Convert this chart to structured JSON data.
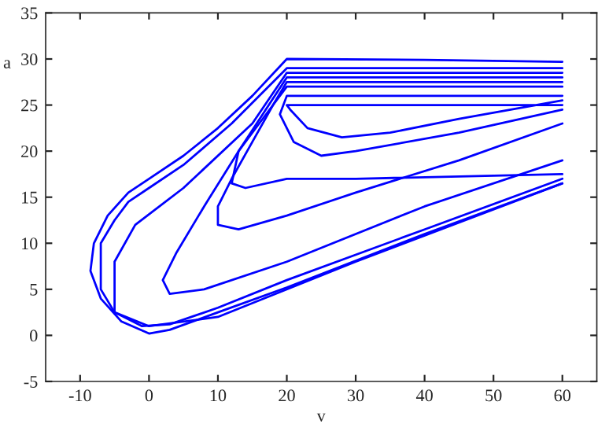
{
  "chart_data": {
    "type": "line",
    "xlabel": "v",
    "ylabel": "a",
    "xlim": [
      -15,
      65
    ],
    "xticks": [
      -10,
      0,
      10,
      20,
      30,
      40,
      50,
      60
    ],
    "ylim": [
      -5,
      35
    ],
    "yticks": [
      -5,
      0,
      5,
      10,
      15,
      20,
      25,
      30,
      35
    ],
    "grid": false,
    "legend": false,
    "marker": "none",
    "line_style": "solid",
    "series": [
      {
        "color": "#0000ff",
        "x": [
          60,
          40,
          20,
          10,
          3,
          0,
          -4,
          -7,
          -8.5,
          -8,
          -6,
          -3,
          0,
          5,
          10,
          15,
          20,
          40,
          60
        ],
        "values": [
          16.5,
          11,
          5.2,
          2.5,
          0.6,
          0.2,
          1.5,
          4,
          7,
          10,
          13,
          15.5,
          17,
          19.5,
          22.5,
          26,
          30,
          29.9,
          29.7
        ]
      },
      {
        "color": "#0000ff",
        "x": [
          60,
          40,
          20,
          10,
          3,
          -1,
          -5,
          -7,
          -7,
          -5,
          -3,
          0,
          5,
          12,
          20,
          40,
          60
        ],
        "values": [
          17,
          11.5,
          6,
          3,
          1.2,
          1,
          2.5,
          5,
          10,
          12.5,
          14.5,
          16,
          18.5,
          23,
          29,
          29,
          29
        ]
      },
      {
        "color": "#0000ff",
        "x": [
          60,
          30,
          10,
          0,
          -5,
          -5,
          -2,
          5,
          15,
          20,
          40,
          60
        ],
        "values": [
          16.5,
          8,
          2,
          1,
          2.5,
          8,
          12,
          16,
          23,
          28.5,
          28.5,
          28.5
        ]
      },
      {
        "color": "#0000ff",
        "x": [
          60,
          40,
          20,
          8,
          3,
          2,
          4,
          8,
          13,
          20,
          40,
          60
        ],
        "values": [
          19,
          14,
          8,
          5,
          4.5,
          6,
          9,
          14,
          20,
          28,
          28,
          28
        ]
      },
      {
        "color": "#0000ff",
        "x": [
          60,
          45,
          30,
          20,
          13,
          10,
          10,
          12,
          15,
          18,
          20,
          40,
          60
        ],
        "values": [
          23,
          19,
          15.5,
          13,
          11.5,
          12,
          14,
          17,
          21,
          25,
          27.5,
          27.5,
          27.5
        ]
      },
      {
        "color": "#0000ff",
        "x": [
          60,
          30,
          20,
          14,
          12,
          13,
          17,
          20,
          40,
          60
        ],
        "values": [
          17.5,
          17,
          17,
          16,
          16.5,
          20,
          24,
          27,
          27,
          27
        ]
      },
      {
        "color": "#0000ff",
        "x": [
          60,
          45,
          30,
          25,
          21,
          19,
          20,
          40,
          60
        ],
        "values": [
          24.5,
          22,
          20,
          19.5,
          21,
          24,
          26,
          26,
          26
        ]
      },
      {
        "color": "#0000ff",
        "x": [
          60,
          45,
          35,
          28,
          23,
          20.5,
          20,
          40,
          60
        ],
        "values": [
          25.5,
          23.5,
          22,
          21.5,
          22.5,
          24.5,
          25,
          25,
          25
        ]
      }
    ]
  }
}
